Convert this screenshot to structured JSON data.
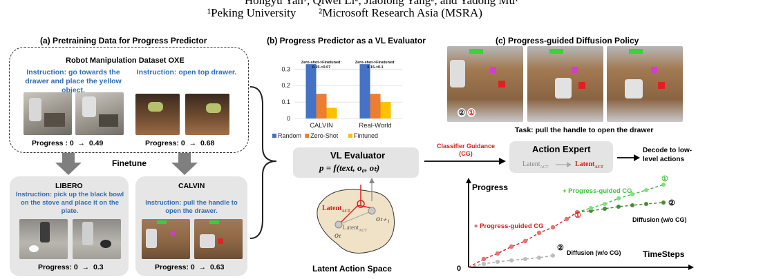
{
  "header": {
    "authors_line": "Hongyu Yan¹, Qiwei Li², Jiaolong Yang², and Yadong Mu¹",
    "affil_1": "¹Peking University",
    "affil_2": "²Microsoft Research Asia (MSRA)"
  },
  "panel_a": {
    "title": "(a) Pretraining Data for Progress Predictor",
    "dataset_title": "Robot Manipulation Dataset OXE",
    "instr1": "Instruction: go towards the drawer and place the yellow object.",
    "instr2": "Instruction: open top drawer.",
    "progress1_label": "Progress : 0",
    "progress1_value": "0.49",
    "progress2_label": "Progress: 0",
    "progress2_value": "0.68",
    "finetune": "Finetune",
    "libero_title": "LIBERO",
    "libero_instr": "Instruction: pick up the black bowl on the stove and place it on the plate.",
    "libero_progress_label": "Progress: 0",
    "libero_progress_value": "0.3",
    "calvin_title": "CALVIN",
    "calvin_instr": "Instruction: pull the handle to open the drawer.",
    "calvin_progress_label": "Progress: 0",
    "calvin_progress_value": "0.63",
    "arrow": "→"
  },
  "panel_b": {
    "title": "(b) Progress Predictor as a VL Evaluator",
    "evaluator_title": "VL Evaluator",
    "evaluator_formula": "p = f(text, o₀, oₜ)",
    "latent_title": "Latent Action Space",
    "latent_act": "Latent",
    "latent_act_sub": "ACT",
    "o_t": "oₜ",
    "o_t1": "oₜ₊₁"
  },
  "chart_data": {
    "type": "bar",
    "categories": [
      "CALVIN",
      "Real-World"
    ],
    "series": [
      {
        "name": "Random",
        "values": [
          0.33,
          0.33
        ],
        "color": "#4472c4"
      },
      {
        "name": "Zero-Shot",
        "values": [
          0.15,
          0.15
        ],
        "color": "#ed7d31"
      },
      {
        "name": "Fintuned",
        "values": [
          0.065,
          0.1
        ],
        "color": "#ffc000"
      }
    ],
    "annotations": [
      "Zero-shot->Finetuned: 0.15->0.07",
      "Zero-shot->Finetuned: 0.15->0.1"
    ],
    "yticks": [
      "0",
      "0.1",
      "0.2",
      "0.3"
    ],
    "ylim": [
      0,
      0.36
    ],
    "grid": true,
    "legend": "bottom"
  },
  "panel_c": {
    "title": "(c) Progress-guided Diffusion Policy",
    "task": "Task: pull the handle to open the drawer",
    "cg_label": "Classifier Guidance (CG)",
    "expert_title": "Action Expert",
    "expert_latent": "Latent",
    "expert_latent_red": "Latent",
    "expert_sub": "ACT",
    "decode": "Decode to low-level actions",
    "plot_ylabel": "Progress",
    "plot_xlabel": "TimeSteps",
    "plot_origin": "0",
    "pg_cg_1": "+ Progress-guided CG",
    "pg_cg_2": "+ Progress-guided CG",
    "diff_1": "Diffusion (w/o CG)",
    "diff_2": "Diffusion (w/o CG)",
    "circle1": "①",
    "circle2": "②"
  }
}
